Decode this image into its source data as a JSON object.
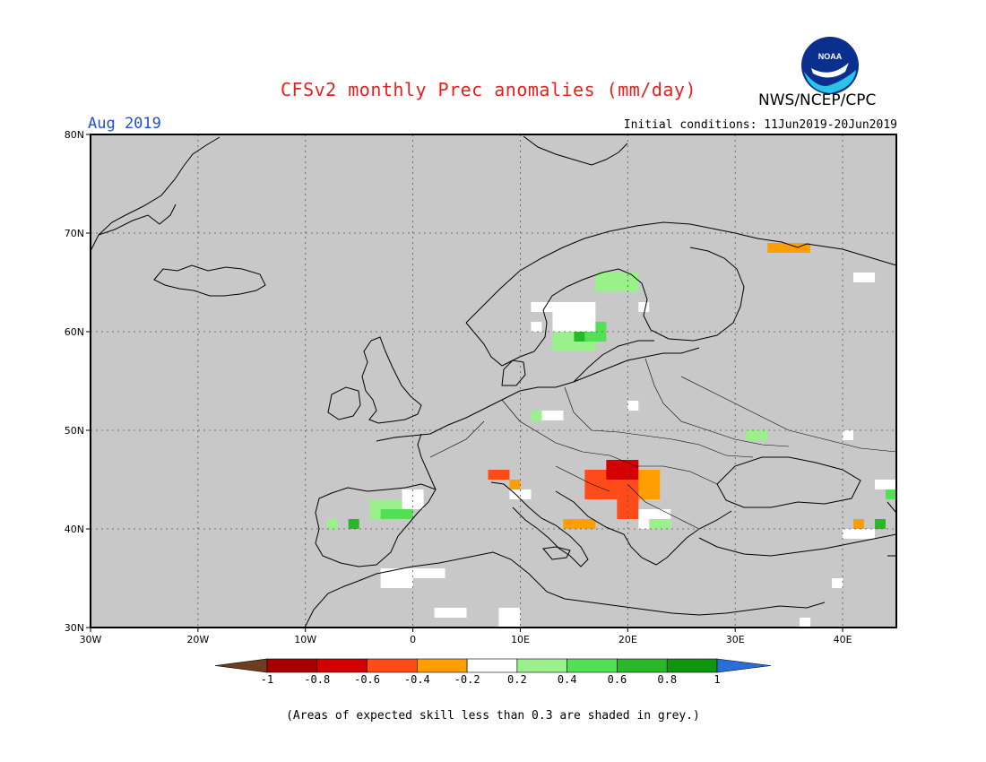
{
  "title": "CFSv2 monthly Prec anomalies (mm/day)",
  "agency": "NWS/NCEP/CPC",
  "logo_text": "NOAA",
  "month": "Aug 2019",
  "initial_conditions": "Initial conditions: 11Jun2019-20Jun2019",
  "caption": "(Areas of expected skill less than 0.3 are shaded in grey.)",
  "colors": {
    "title": "#e8201c",
    "month": "#1f4de0",
    "background_grey": "#c8c8c8",
    "neutral_white": "#ffffff"
  },
  "axes": {
    "lon_labels": [
      "30W",
      "20W",
      "10W",
      "0",
      "10E",
      "20E",
      "30E",
      "40E"
    ],
    "lat_labels": [
      "80N",
      "70N",
      "60N",
      "50N",
      "40N",
      "30N"
    ]
  },
  "legend": {
    "labels": [
      "-1",
      "-0.8",
      "-0.6",
      "-0.4",
      "-0.2",
      "0.2",
      "0.4",
      "0.6",
      "0.8",
      "1"
    ],
    "colors": [
      "#6e3c1e",
      "#a80000",
      "#d40000",
      "#ff4a1a",
      "#ff9e00",
      "#ffffff",
      "#9af08a",
      "#54e054",
      "#2ab82a",
      "#10960e",
      "#2a6ed8"
    ]
  },
  "chart_data": {
    "type": "heatmap",
    "lon_range": [
      -30,
      45
    ],
    "lat_range": [
      30,
      80
    ],
    "cell_size_deg": 1,
    "categories": [
      "-1 to -0.8",
      "-0.8 to -0.6",
      "-0.6 to -0.4",
      "-0.4 to -0.2",
      "-0.2 to 0.2",
      "0.2 to 0.4",
      "0.4 to 0.6",
      "0.6 to 0.8"
    ],
    "regions": [
      {
        "anomaly": "-0.4 to -0.2",
        "lon": [
          33,
          37
        ],
        "lat": [
          68,
          69
        ]
      },
      {
        "anomaly": "0.2 to 0.4",
        "lon": [
          17,
          21
        ],
        "lat": [
          64,
          66
        ]
      },
      {
        "anomaly": "0.2 to 0.4",
        "lon": [
          13,
          17
        ],
        "lat": [
          58,
          60
        ]
      },
      {
        "anomaly": "0.4 to 0.6",
        "lon": [
          16,
          18
        ],
        "lat": [
          59,
          61
        ]
      },
      {
        "anomaly": "0.6 to 0.8",
        "lon": [
          15,
          16
        ],
        "lat": [
          59,
          60
        ]
      },
      {
        "anomaly": "-0.2 to 0.2",
        "lon": [
          13,
          17
        ],
        "lat": [
          60,
          63
        ]
      },
      {
        "anomaly": "-0.2 to 0.2",
        "lon": [
          11,
          13
        ],
        "lat": [
          62,
          63
        ]
      },
      {
        "anomaly": "-0.2 to 0.2",
        "lon": [
          21,
          22
        ],
        "lat": [
          62,
          63
        ]
      },
      {
        "anomaly": "-0.2 to 0.2",
        "lon": [
          11,
          12
        ],
        "lat": [
          60,
          61
        ]
      },
      {
        "anomaly": "-0.2 to 0.2",
        "lon": [
          41,
          43
        ],
        "lat": [
          65,
          66
        ]
      },
      {
        "anomaly": "-0.2 to 0.2",
        "lon": [
          12,
          14
        ],
        "lat": [
          51,
          52
        ]
      },
      {
        "anomaly": "0.2 to 0.4",
        "lon": [
          11,
          12
        ],
        "lat": [
          51,
          52
        ]
      },
      {
        "anomaly": "-0.2 to 0.2",
        "lon": [
          20,
          21
        ],
        "lat": [
          52,
          53
        ]
      },
      {
        "anomaly": "0.2 to 0.4",
        "lon": [
          31,
          33
        ],
        "lat": [
          49,
          50
        ]
      },
      {
        "anomaly": "-0.2 to 0.2",
        "lon": [
          40,
          41
        ],
        "lat": [
          49,
          50
        ]
      },
      {
        "anomaly": "-0.6 to -0.4",
        "lon": [
          7,
          9
        ],
        "lat": [
          45,
          46
        ]
      },
      {
        "anomaly": "-0.6 to -0.4",
        "lon": [
          16,
          22
        ],
        "lat": [
          43,
          46
        ]
      },
      {
        "anomaly": "-0.8 to -0.6",
        "lon": [
          18,
          21
        ],
        "lat": [
          45,
          47
        ]
      },
      {
        "anomaly": "-0.4 to -0.2",
        "lon": [
          21,
          23
        ],
        "lat": [
          43,
          46
        ]
      },
      {
        "anomaly": "-0.6 to -0.4",
        "lon": [
          19,
          21
        ],
        "lat": [
          41,
          43
        ]
      },
      {
        "anomaly": "-0.4 to -0.2",
        "lon": [
          14,
          17
        ],
        "lat": [
          40,
          41
        ]
      },
      {
        "anomaly": "-0.4 to -0.2",
        "lon": [
          9,
          10
        ],
        "lat": [
          44,
          45
        ]
      },
      {
        "anomaly": "-0.2 to 0.2",
        "lon": [
          9,
          11
        ],
        "lat": [
          43,
          44
        ]
      },
      {
        "anomaly": "0.2 to 0.4",
        "lon": [
          -4,
          -1
        ],
        "lat": [
          41,
          43
        ]
      },
      {
        "anomaly": "0.4 to 0.6",
        "lon": [
          -3,
          0
        ],
        "lat": [
          41,
          42
        ]
      },
      {
        "anomaly": "0.2 to 0.4",
        "lon": [
          -8,
          -7
        ],
        "lat": [
          40,
          41
        ]
      },
      {
        "anomaly": "0.6 to 0.8",
        "lon": [
          -6,
          -5
        ],
        "lat": [
          40,
          41
        ]
      },
      {
        "anomaly": "-0.2 to 0.2",
        "lon": [
          -3,
          0
        ],
        "lat": [
          34,
          36
        ]
      },
      {
        "anomaly": "-0.2 to 0.2",
        "lon": [
          0,
          3
        ],
        "lat": [
          35,
          36
        ]
      },
      {
        "anomaly": "-0.2 to 0.2",
        "lon": [
          -1,
          1
        ],
        "lat": [
          42,
          44
        ]
      },
      {
        "anomaly": "-0.2 to 0.2",
        "lon": [
          8,
          10
        ],
        "lat": [
          30,
          32
        ]
      },
      {
        "anomaly": "-0.2 to 0.2",
        "lon": [
          2,
          5
        ],
        "lat": [
          31,
          32
        ]
      },
      {
        "anomaly": "-0.2 to 0.2",
        "lon": [
          40,
          43
        ],
        "lat": [
          39,
          40
        ]
      },
      {
        "anomaly": "-0.4 to -0.2",
        "lon": [
          41,
          42
        ],
        "lat": [
          40,
          41
        ]
      },
      {
        "anomaly": "0.6 to 0.8",
        "lon": [
          43,
          44
        ],
        "lat": [
          40,
          41
        ]
      },
      {
        "anomaly": "-0.2 to 0.2",
        "lon": [
          43,
          45
        ],
        "lat": [
          44,
          45
        ]
      },
      {
        "anomaly": "0.4 to 0.6",
        "lon": [
          44,
          45
        ],
        "lat": [
          43,
          44
        ]
      },
      {
        "anomaly": "-0.2 to 0.2",
        "lon": [
          21,
          24
        ],
        "lat": [
          40,
          42
        ]
      },
      {
        "anomaly": "0.2 to 0.4",
        "lon": [
          22,
          24
        ],
        "lat": [
          40,
          41
        ]
      },
      {
        "anomaly": "-0.2 to 0.2",
        "lon": [
          39,
          40
        ],
        "lat": [
          34,
          35
        ]
      },
      {
        "anomaly": "-0.2 to 0.2",
        "lon": [
          36,
          37
        ],
        "lat": [
          30,
          31
        ]
      }
    ]
  }
}
